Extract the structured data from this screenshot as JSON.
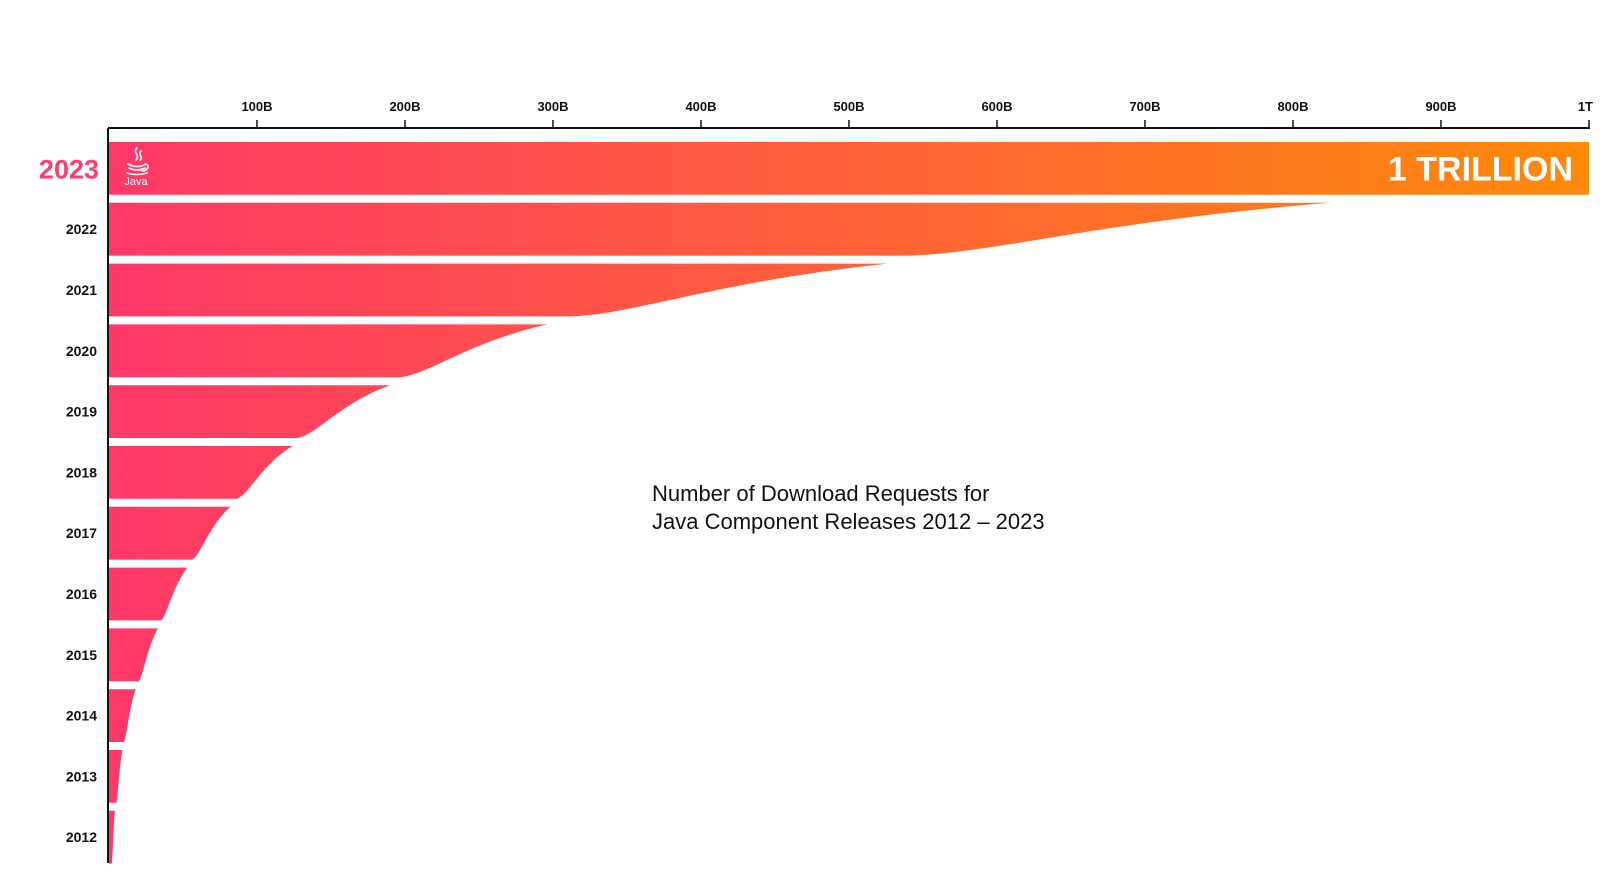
{
  "chart_data": {
    "type": "bar",
    "orientation": "horizontal",
    "title_lines": [
      "Number of Download Requests for",
      "Java Component Releases 2012 – 2023"
    ],
    "xlabel": "",
    "ylabel": "",
    "xlim": [
      0,
      1000
    ],
    "x_unit": "billions",
    "x_ticks": [
      {
        "value": 100,
        "label": "100B"
      },
      {
        "value": 200,
        "label": "200B"
      },
      {
        "value": 300,
        "label": "300B"
      },
      {
        "value": 400,
        "label": "400B"
      },
      {
        "value": 500,
        "label": "500B"
      },
      {
        "value": 600,
        "label": "600B"
      },
      {
        "value": 700,
        "label": "700B"
      },
      {
        "value": 800,
        "label": "800B"
      },
      {
        "value": 900,
        "label": "900B"
      },
      {
        "value": 1000,
        "label": "1T"
      }
    ],
    "categories": [
      "2023",
      "2022",
      "2021",
      "2020",
      "2019",
      "2018",
      "2017",
      "2016",
      "2015",
      "2014",
      "2013",
      "2012"
    ],
    "values": [
      1000,
      826,
      526,
      296,
      190,
      124,
      82,
      53,
      33,
      18,
      9,
      4
    ],
    "top_values": [
      1000,
      826,
      526,
      296,
      190,
      124,
      82,
      53,
      33,
      18,
      9,
      4
    ],
    "bottom_values": [
      1000,
      540,
      312,
      196,
      127,
      86,
      56,
      35,
      20,
      10,
      5,
      2
    ],
    "highlight": {
      "category": "2023",
      "label": "1 TRILLION"
    },
    "colors": {
      "start": "#ff3868",
      "end": "#ff8a0a",
      "highlight_text": "#ff3d6e",
      "axis": "#111111"
    },
    "grid": false,
    "legend": "none",
    "logo": {
      "icon": "java-cup-icon",
      "text": "Java"
    }
  }
}
